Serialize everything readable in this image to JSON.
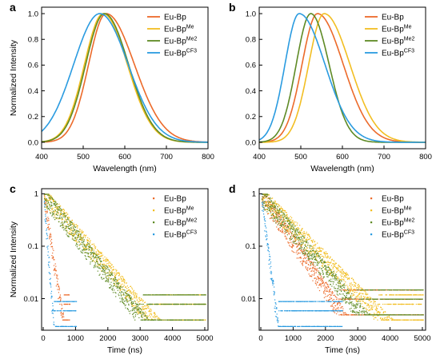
{
  "colors": {
    "eu_bp": "#ec6a2a",
    "eu_bp_me": "#f2be22",
    "eu_bp_me2": "#5e8a25",
    "eu_bp_cf3": "#2a9be0"
  },
  "chart_data": [
    {
      "panel": "a",
      "type": "line",
      "xlabel": "Wavelength (nm)",
      "ylabel": "Normalized Intensity",
      "xlim": [
        400,
        800
      ],
      "ylim": [
        -0.05,
        1.05
      ],
      "xticks": [
        "400",
        "500",
        "600",
        "700",
        "800"
      ],
      "yticks": [
        "0.0",
        "0.2",
        "0.4",
        "0.6",
        "0.8",
        "1.0"
      ],
      "legend_position": "top-right",
      "series": [
        {
          "name": "Eu-Bp",
          "sup": "",
          "color": "#ec6a2a",
          "peak": 555,
          "sl": 42,
          "sr": 68
        },
        {
          "name": "Eu-Bp",
          "sup": "Me",
          "color": "#f2be22",
          "peak": 548,
          "sl": 45,
          "sr": 58
        },
        {
          "name": "Eu-Bp",
          "sup": "Me2",
          "color": "#5e8a25",
          "peak": 551,
          "sl": 45,
          "sr": 58
        },
        {
          "name": "Eu-Bp",
          "sup": "CF3",
          "color": "#2a9be0",
          "peak": 540,
          "sl": 63,
          "sr": 68
        }
      ]
    },
    {
      "panel": "b",
      "type": "line",
      "xlabel": "Wavelength (nm)",
      "ylabel": "",
      "xlim": [
        400,
        800
      ],
      "ylim": [
        -0.05,
        1.05
      ],
      "xticks": [
        "400",
        "500",
        "600",
        "700",
        "800"
      ],
      "yticks": [
        "0.0",
        "0.2",
        "0.4",
        "0.6",
        "0.8",
        "1.0"
      ],
      "legend_position": "top-right",
      "series": [
        {
          "name": "Eu-Bp",
          "sup": "",
          "color": "#ec6a2a",
          "peak": 540,
          "sl": 37,
          "sr": 62
        },
        {
          "name": "Eu-Bp",
          "sup": "Me",
          "color": "#f2be22",
          "peak": 556,
          "sl": 37,
          "sr": 62
        },
        {
          "name": "Eu-Bp",
          "sup": "Me2",
          "color": "#5e8a25",
          "peak": 524,
          "sl": 35,
          "sr": 44
        },
        {
          "name": "Eu-Bp",
          "sup": "CF3",
          "color": "#2a9be0",
          "peak": 496,
          "sl": 34,
          "sr": 62
        }
      ]
    },
    {
      "panel": "c",
      "type": "scatter",
      "xlabel": "Time (ns)",
      "ylabel": "Normalized Intensity",
      "xlim": [
        -50,
        5100
      ],
      "ylim": [
        0.0025,
        1.25
      ],
      "yscale": "log",
      "xticks": [
        "0",
        "1000",
        "2000",
        "3000",
        "4000",
        "5000"
      ],
      "yticks": [
        "1",
        "0.1",
        "0.01"
      ],
      "legend_position": "top-right",
      "series": [
        {
          "name": "Eu-Bp",
          "sup": "",
          "color": "#ec6a2a",
          "tau_ns": 110,
          "floor": 0.004,
          "end_ns": 800
        },
        {
          "name": "Eu-Bp",
          "sup": "Me",
          "color": "#f2be22",
          "tau_ns": 620,
          "floor": 0.004,
          "end_ns": 5000
        },
        {
          "name": "Eu-Bp",
          "sup": "Me2",
          "color": "#5e8a25",
          "tau_ns": 560,
          "floor": 0.004,
          "end_ns": 5000
        },
        {
          "name": "Eu-Bp",
          "sup": "CF3",
          "color": "#2a9be0",
          "tau_ns": 55,
          "floor": 0.003,
          "end_ns": 1000
        }
      ]
    },
    {
      "panel": "d",
      "type": "scatter",
      "xlabel": "Time (ns)",
      "ylabel": "",
      "xlim": [
        -50,
        5100
      ],
      "ylim": [
        0.0025,
        1.25
      ],
      "yscale": "log",
      "xticks": [
        "0",
        "1000",
        "2000",
        "3000",
        "4000",
        "5000"
      ],
      "yticks": [
        "1",
        "0.1",
        "0.01"
      ],
      "legend_position": "top-right",
      "series": [
        {
          "name": "Eu-Bp",
          "sup": "",
          "color": "#ec6a2a",
          "tau_ns": 480,
          "floor": 0.005,
          "end_ns": 5000
        },
        {
          "name": "Eu-Bp",
          "sup": "Me",
          "color": "#f2be22",
          "tau_ns": 700,
          "floor": 0.004,
          "end_ns": 5000
        },
        {
          "name": "Eu-Bp",
          "sup": "Me2",
          "color": "#5e8a25",
          "tau_ns": 600,
          "floor": 0.005,
          "end_ns": 5000
        },
        {
          "name": "Eu-Bp",
          "sup": "CF3",
          "color": "#2a9be0",
          "tau_ns": 90,
          "floor": 0.003,
          "end_ns": 2500
        }
      ]
    }
  ]
}
